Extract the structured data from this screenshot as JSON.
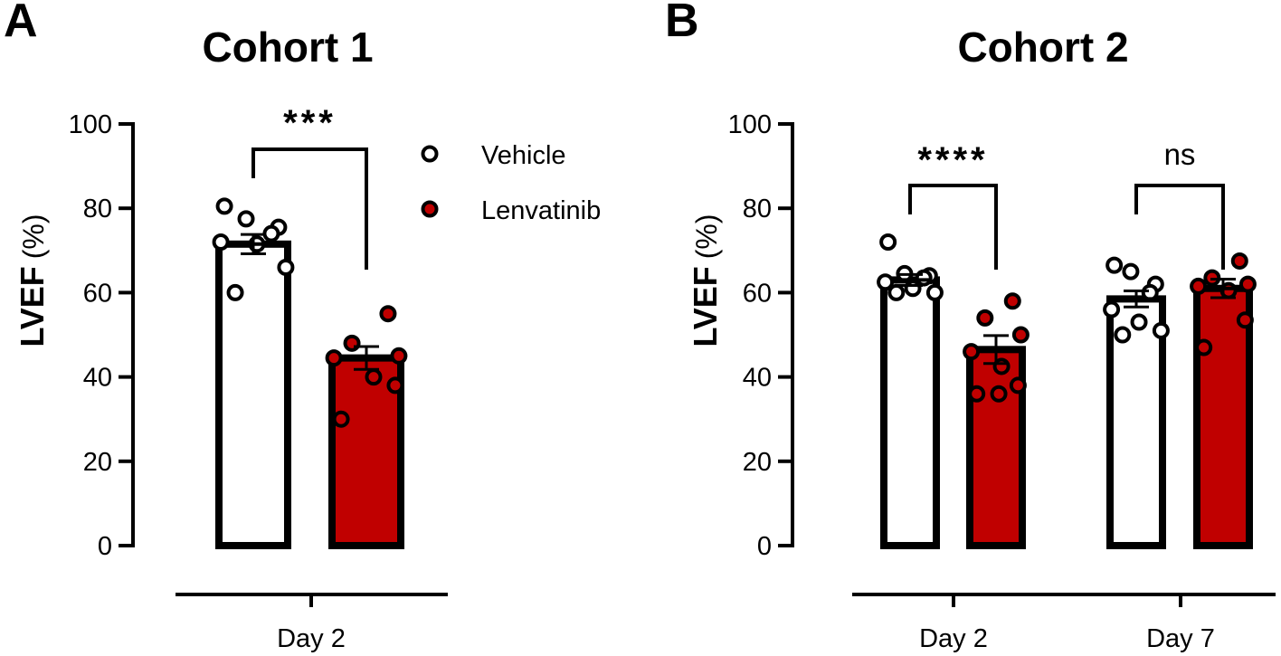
{
  "panels": [
    {
      "letter": "A",
      "title": "Cohort 1",
      "ylabel_main": "LVEF",
      "ylabel_unit": "(%)",
      "days": [
        "Day 2"
      ]
    },
    {
      "letter": "B",
      "title": "Cohort 2",
      "ylabel_main": "LVEF",
      "ylabel_unit": "(%)",
      "days": [
        "Day 2",
        "Day 7"
      ]
    }
  ],
  "legend": {
    "vehicle": "Vehicle",
    "lenvatinib": "Lenvatinib"
  },
  "colors": {
    "vehicle_fill": "#ffffff",
    "lenvatinib_fill": "#c00000",
    "stroke": "#000000"
  },
  "chart_data": [
    {
      "type": "bar",
      "title": "Cohort 1",
      "ylabel": "LVEF (%)",
      "ylim": [
        0,
        100
      ],
      "yticks": [
        0,
        20,
        40,
        60,
        80,
        100
      ],
      "categories": [
        "Day 2"
      ],
      "series": [
        {
          "name": "Vehicle",
          "values": [
            71.5
          ],
          "sem": [
            2.3
          ],
          "points": [
            [
              80.5,
              77.5,
              75.5,
              74,
              72,
              71.5,
              66,
              60
            ]
          ]
        },
        {
          "name": "Lenvatinib",
          "values": [
            44.5
          ],
          "sem": [
            2.7
          ],
          "points": [
            [
              55,
              48,
              45,
              44.5,
              40,
              38,
              30
            ]
          ]
        }
      ],
      "significance": [
        "***"
      ]
    },
    {
      "type": "bar",
      "title": "Cohort 2",
      "ylabel": "LVEF (%)",
      "ylim": [
        0,
        100
      ],
      "yticks": [
        0,
        20,
        40,
        60,
        80,
        100
      ],
      "categories": [
        "Day 2",
        "Day 7"
      ],
      "series": [
        {
          "name": "Vehicle",
          "values": [
            63,
            58.5
          ],
          "sem": [
            1.3,
            1.9
          ],
          "points": [
            [
              72,
              64.5,
              64,
              63.5,
              62.5,
              61,
              60,
              60
            ],
            [
              66.5,
              65,
              62,
              60,
              56,
              53,
              51,
              50
            ]
          ]
        },
        {
          "name": "Lenvatinib",
          "values": [
            46.5,
            61
          ],
          "sem": [
            3.3,
            2.2
          ],
          "points": [
            [
              58,
              54,
              50,
              46,
              42.5,
              38,
              36,
              36
            ],
            [
              67.5,
              63.5,
              62,
              61.5,
              60.5,
              53.5,
              47
            ]
          ]
        }
      ],
      "significance": [
        "****",
        "ns"
      ]
    }
  ]
}
